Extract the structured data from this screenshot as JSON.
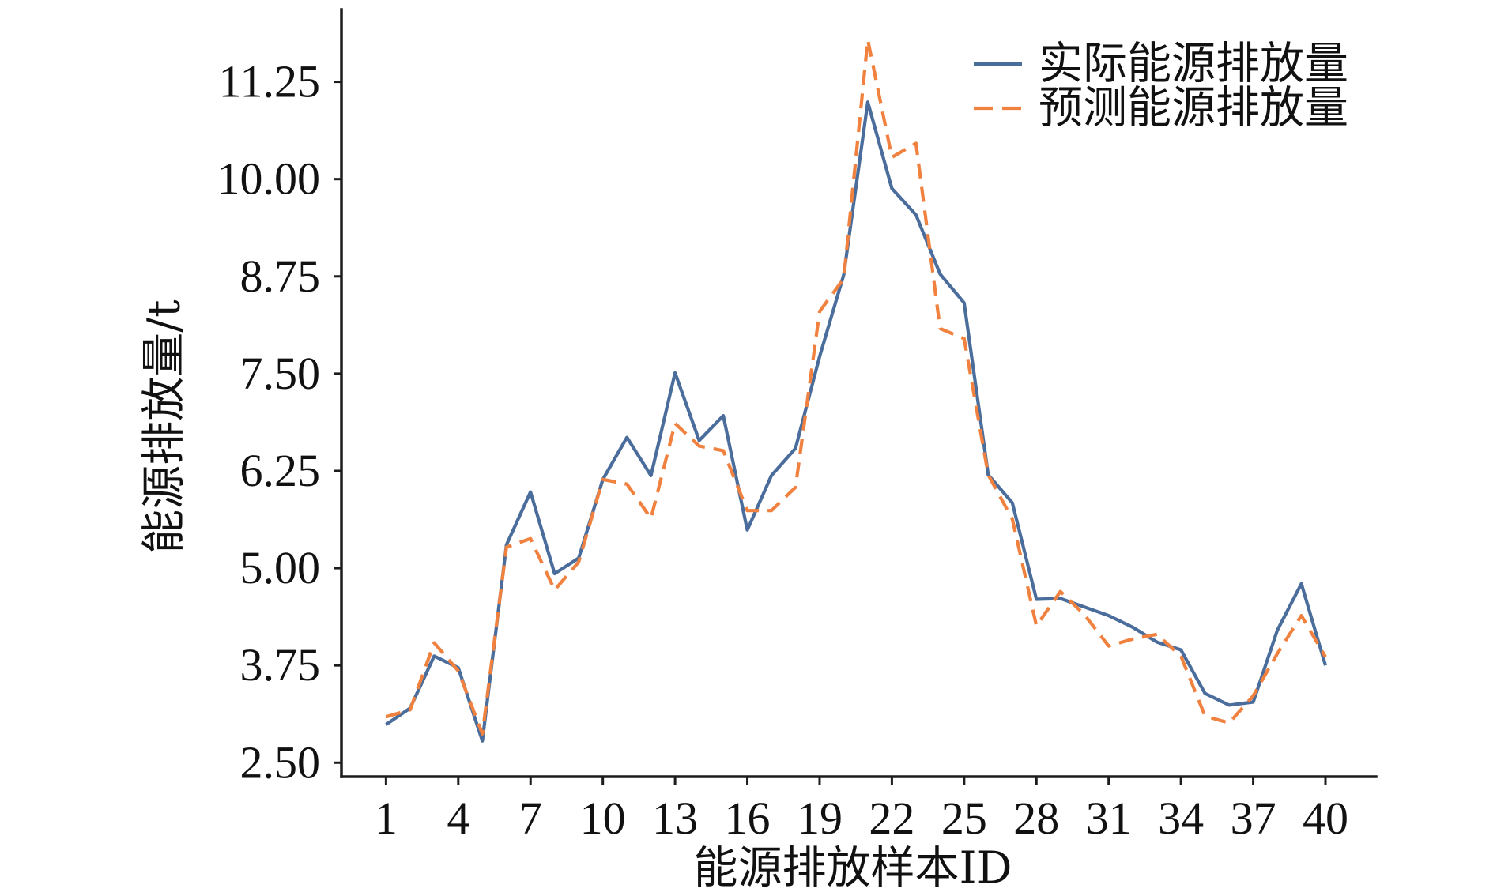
{
  "chart_data": {
    "type": "line",
    "xlabel": "能源排放样本ID",
    "ylabel": "能源排放量/t",
    "x": [
      1,
      2,
      3,
      4,
      5,
      6,
      7,
      8,
      9,
      10,
      11,
      12,
      13,
      14,
      15,
      16,
      17,
      18,
      19,
      20,
      21,
      22,
      23,
      24,
      25,
      26,
      27,
      28,
      29,
      30,
      31,
      32,
      33,
      34,
      35,
      36,
      37,
      38,
      39,
      40
    ],
    "x_ticks": [
      1,
      4,
      7,
      10,
      13,
      16,
      19,
      22,
      25,
      28,
      31,
      34,
      37,
      40
    ],
    "y_ticks": [
      2.5,
      3.75,
      5.0,
      6.25,
      7.5,
      8.75,
      10.0,
      11.25
    ],
    "y_tick_labels": [
      "2.50",
      "3.75",
      "5.00",
      "6.25",
      "7.50",
      "8.75",
      "10.00",
      "11.25"
    ],
    "xlim": [
      -0.85,
      42.1
    ],
    "ylim": [
      2.32,
      12.18
    ],
    "grid": false,
    "legend": "top-right",
    "series": [
      {
        "name": "实际能源排放量",
        "color": "#4b6d9b",
        "line_style": "solid",
        "values": [
          2.99,
          3.2,
          3.87,
          3.72,
          2.78,
          5.3,
          5.98,
          4.93,
          5.13,
          6.14,
          6.68,
          6.19,
          7.51,
          6.64,
          6.96,
          5.49,
          6.19,
          6.54,
          7.72,
          8.77,
          10.99,
          9.88,
          9.54,
          8.78,
          8.41,
          6.2,
          5.84,
          4.6,
          4.61,
          4.5,
          4.39,
          4.24,
          4.05,
          3.95,
          3.39,
          3.24,
          3.28,
          4.2,
          4.8,
          3.75
        ]
      },
      {
        "name": "预测能源排放量",
        "color": "#f0813f",
        "line_style": "dashed",
        "values": [
          3.09,
          3.18,
          4.04,
          3.68,
          2.87,
          5.27,
          5.38,
          4.72,
          5.08,
          6.14,
          6.08,
          5.64,
          6.86,
          6.57,
          6.51,
          5.74,
          5.74,
          6.04,
          8.3,
          8.72,
          11.79,
          10.28,
          10.46,
          8.08,
          7.95,
          6.2,
          5.63,
          4.26,
          4.7,
          4.4,
          4.0,
          4.09,
          4.15,
          3.87,
          3.1,
          3.01,
          3.36,
          3.9,
          4.39,
          3.86
        ]
      }
    ]
  }
}
